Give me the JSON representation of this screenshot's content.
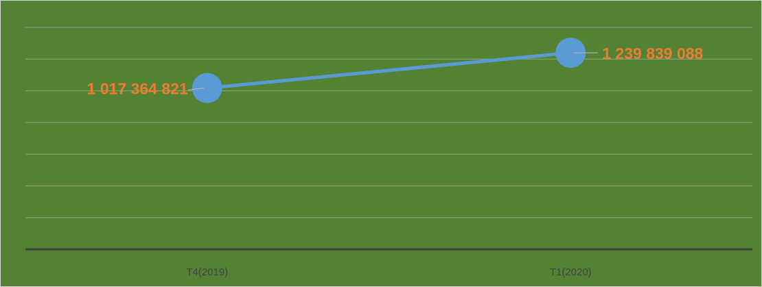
{
  "chart_data": {
    "type": "line",
    "categories": [
      "T4(2019)",
      "T1(2020)"
    ],
    "series": [
      {
        "color": "#5b9bd5",
        "values": [
          1017364821,
          1239839088
        ],
        "value_labels": [
          "1 017 364 821",
          "1 239 839 088"
        ]
      }
    ],
    "ylim": [
      0,
      1400000000
    ],
    "yticks": [
      0,
      200000000,
      400000000,
      600000000,
      800000000,
      1000000000,
      1200000000,
      1400000000
    ],
    "grid": true,
    "label_color": "#ed7d31",
    "background": "#548235"
  }
}
